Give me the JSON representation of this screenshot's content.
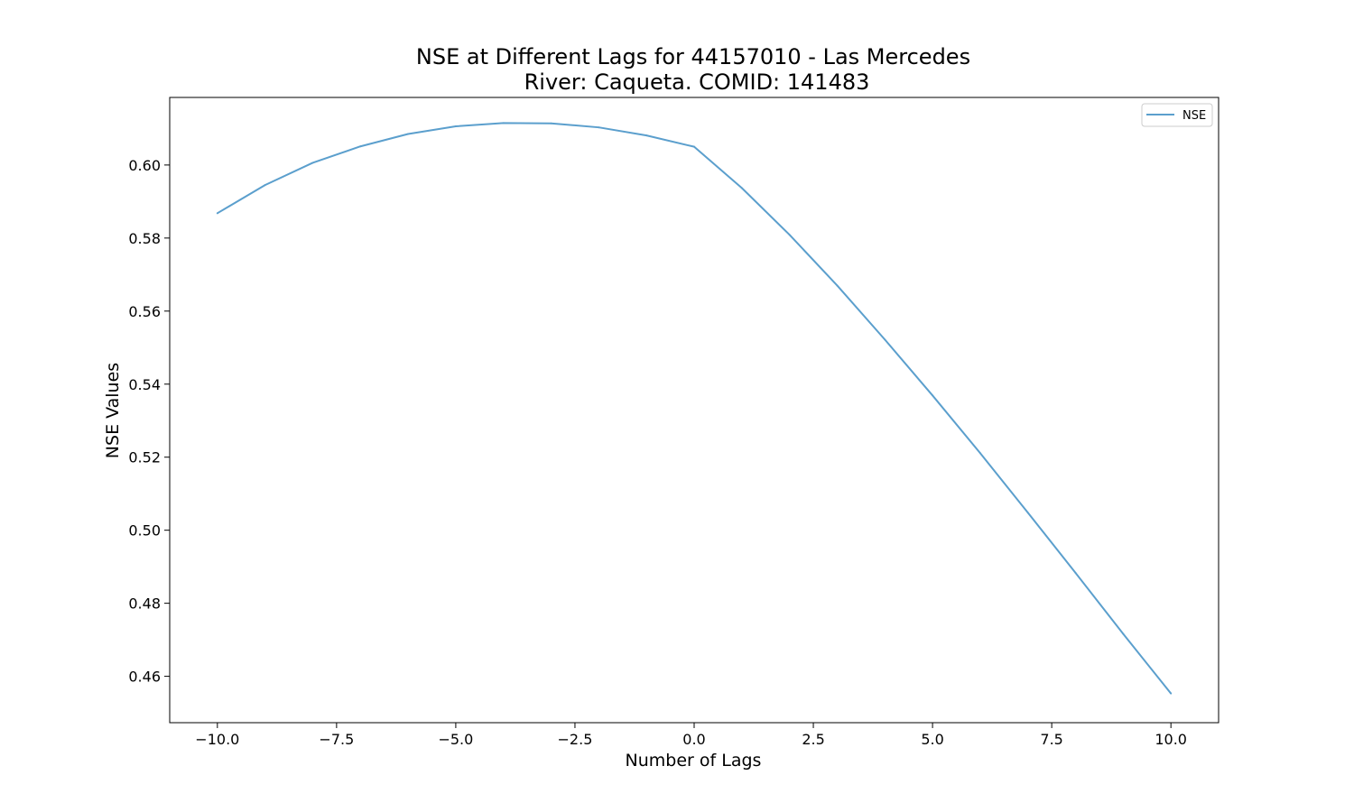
{
  "chart_data": {
    "type": "line",
    "title": "NSE at Different Lags for 44157010 - Las Mercedes",
    "subtitle": "River: Caqueta. COMID: 141483",
    "xlabel": "Number of Lags",
    "ylabel": "NSE Values",
    "xlim": [
      -11,
      11
    ],
    "ylim": [
      0.4473,
      0.6185
    ],
    "xticks": [
      -10.0,
      -7.5,
      -5.0,
      -2.5,
      0.0,
      2.5,
      5.0,
      7.5,
      10.0
    ],
    "xtick_labels": [
      "−10.0",
      "−7.5",
      "−5.0",
      "−2.5",
      "0.0",
      "2.5",
      "5.0",
      "7.5",
      "10.0"
    ],
    "yticks": [
      0.46,
      0.48,
      0.5,
      0.52,
      0.54,
      0.56,
      0.58,
      0.6
    ],
    "ytick_labels": [
      "0.46",
      "0.48",
      "0.50",
      "0.52",
      "0.54",
      "0.56",
      "0.58",
      "0.60"
    ],
    "grid": false,
    "legend_position": "top-right",
    "x": [
      -10,
      -9,
      -8,
      -7,
      -6,
      -5,
      -4,
      -3,
      -2,
      -1,
      0,
      1,
      2,
      3,
      4,
      5,
      6,
      7,
      8,
      9,
      10
    ],
    "series": [
      {
        "name": "NSE",
        "color": "#5b9fcd",
        "values": [
          0.5868,
          0.5945,
          0.6006,
          0.6051,
          0.6085,
          0.6106,
          0.6115,
          0.6114,
          0.6103,
          0.6081,
          0.605,
          0.5937,
          0.5809,
          0.567,
          0.5522,
          0.5369,
          0.5211,
          0.5048,
          0.4883,
          0.4716,
          0.4553
        ]
      }
    ]
  }
}
